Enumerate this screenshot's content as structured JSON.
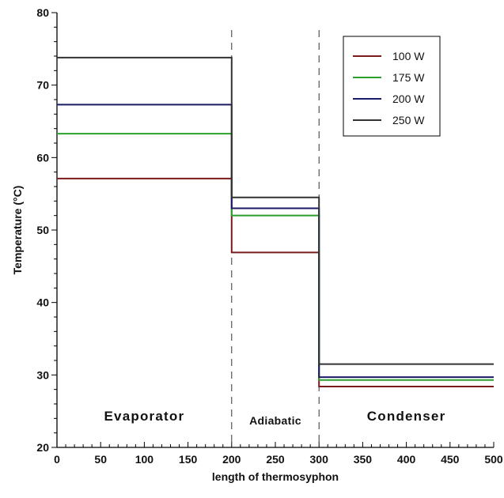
{
  "chart_data": {
    "type": "line",
    "title": "",
    "xlabel": "length of thermosyphon",
    "ylabel": "Temperature (°C)",
    "xlim": [
      0,
      500
    ],
    "ylim": [
      20,
      80
    ],
    "x_ticks": [
      0,
      50,
      100,
      150,
      200,
      250,
      300,
      350,
      400,
      450,
      500
    ],
    "y_ticks": [
      20,
      30,
      40,
      50,
      60,
      70,
      80
    ],
    "grid": false,
    "legend_position": "top-right",
    "section_dividers": [
      200,
      300
    ],
    "sections": [
      {
        "label": "Evaporator",
        "x_range": [
          0,
          200
        ]
      },
      {
        "label": "Adiabatic",
        "x_range": [
          200,
          300
        ]
      },
      {
        "label": "Condenser",
        "x_range": [
          300,
          500
        ]
      }
    ],
    "segment_bounds": [
      [
        0,
        200
      ],
      [
        200,
        300
      ],
      [
        300,
        500
      ]
    ],
    "series": [
      {
        "name": "100 W",
        "color": "#7a1c1c",
        "values": [
          57.1,
          46.9,
          28.4
        ]
      },
      {
        "name": "175 W",
        "color": "#2ca02c",
        "values": [
          63.3,
          52.0,
          29.3
        ]
      },
      {
        "name": "200 W",
        "color": "#1a1a66",
        "values": [
          67.3,
          53.0,
          29.7
        ]
      },
      {
        "name": "250 W",
        "color": "#333333",
        "values": [
          73.8,
          54.5,
          31.5
        ]
      }
    ]
  }
}
